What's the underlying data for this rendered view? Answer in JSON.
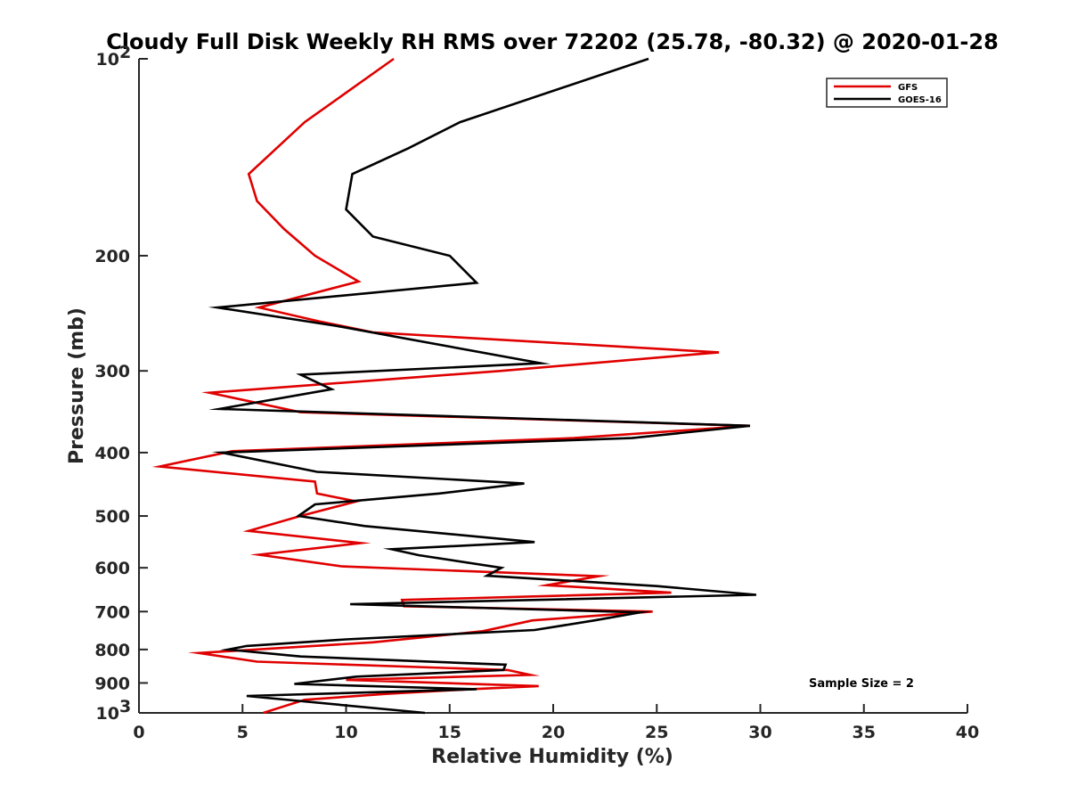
{
  "chart_data": {
    "type": "line",
    "title": "Cloudy Full Disk Weekly RH RMS over 72202 (25.78, -80.32) @ 2020-01-28",
    "xlabel": "Relative Humidity (%)",
    "ylabel": "Pressure (mb)",
    "xlim": [
      0,
      40
    ],
    "ylim": [
      100,
      1000
    ],
    "yscale": "log",
    "y_reversed": true,
    "x_ticks": [
      "0",
      "5",
      "10",
      "15",
      "20",
      "25",
      "30",
      "35",
      "40"
    ],
    "y_ticks": [
      {
        "value": 100,
        "base": "10",
        "exp": "2"
      },
      {
        "value": 200,
        "label": "200"
      },
      {
        "value": 300,
        "label": "300"
      },
      {
        "value": 400,
        "label": "400"
      },
      {
        "value": 500,
        "label": "500"
      },
      {
        "value": 600,
        "label": "600"
      },
      {
        "value": 700,
        "label": "700"
      },
      {
        "value": 800,
        "label": "800"
      },
      {
        "value": 900,
        "label": "900"
      },
      {
        "value": 1000,
        "base": "10",
        "exp": "3"
      }
    ],
    "grid": false,
    "legend_position": "top-right",
    "annotation": "Sample Size = 2",
    "series": [
      {
        "name": "GFS",
        "color": "#e00000",
        "points": [
          [
            12.3,
            100
          ],
          [
            8.0,
            125
          ],
          [
            5.3,
            150
          ],
          [
            5.7,
            165
          ],
          [
            7.0,
            182
          ],
          [
            8.5,
            200
          ],
          [
            10.6,
            219
          ],
          [
            5.8,
            240
          ],
          [
            8.7,
            252
          ],
          [
            11.3,
            262
          ],
          [
            28.0,
            281
          ],
          [
            17.5,
            300
          ],
          [
            3.4,
            324
          ],
          [
            7.8,
            347
          ],
          [
            29.5,
            364
          ],
          [
            21.0,
            380
          ],
          [
            4.5,
            398
          ],
          [
            1.0,
            420
          ],
          [
            8.5,
            443
          ],
          [
            8.6,
            462
          ],
          [
            10.5,
            475
          ],
          [
            7.8,
            500
          ],
          [
            5.3,
            527
          ],
          [
            10.7,
            550
          ],
          [
            5.8,
            573
          ],
          [
            9.8,
            597
          ],
          [
            22.2,
            618
          ],
          [
            19.7,
            638
          ],
          [
            25.7,
            655
          ],
          [
            12.7,
            672
          ],
          [
            12.8,
            687
          ],
          [
            24.8,
            700
          ],
          [
            19.0,
            722
          ],
          [
            16.6,
            750
          ],
          [
            11.3,
            780
          ],
          [
            2.9,
            810
          ],
          [
            5.7,
            835
          ],
          [
            17.8,
            860
          ],
          [
            18.9,
            875
          ],
          [
            10.0,
            890
          ],
          [
            19.3,
            910
          ],
          [
            16.0,
            920
          ],
          [
            12.0,
            935
          ],
          [
            8.0,
            955
          ],
          [
            6.0,
            1000
          ]
        ]
      },
      {
        "name": "GOES-16",
        "color": "#000000",
        "points": [
          [
            24.6,
            100
          ],
          [
            15.5,
            125
          ],
          [
            13.0,
            137
          ],
          [
            10.3,
            150
          ],
          [
            10.0,
            170
          ],
          [
            11.3,
            187
          ],
          [
            15.0,
            200
          ],
          [
            16.3,
            220
          ],
          [
            3.8,
            240
          ],
          [
            9.5,
            256
          ],
          [
            19.4,
            292
          ],
          [
            7.8,
            304
          ],
          [
            9.3,
            320
          ],
          [
            3.9,
            343
          ],
          [
            29.5,
            364
          ],
          [
            23.8,
            380
          ],
          [
            4.0,
            400
          ],
          [
            8.6,
            428
          ],
          [
            18.6,
            446
          ],
          [
            14.5,
            462
          ],
          [
            8.5,
            480
          ],
          [
            7.7,
            500
          ],
          [
            10.9,
            518
          ],
          [
            19.1,
            548
          ],
          [
            12.2,
            562
          ],
          [
            13.5,
            574
          ],
          [
            17.5,
            600
          ],
          [
            16.8,
            617
          ],
          [
            25.0,
            640
          ],
          [
            29.8,
            660
          ],
          [
            10.2,
            682
          ],
          [
            24.2,
            702
          ],
          [
            22.0,
            722
          ],
          [
            19.1,
            747
          ],
          [
            10.0,
            772
          ],
          [
            5.2,
            790
          ],
          [
            4.3,
            800
          ],
          [
            7.8,
            820
          ],
          [
            17.7,
            844
          ],
          [
            17.6,
            860
          ],
          [
            10.5,
            880
          ],
          [
            7.5,
            903
          ],
          [
            16.3,
            920
          ],
          [
            5.2,
            942
          ],
          [
            13.8,
            1000
          ]
        ]
      }
    ]
  }
}
